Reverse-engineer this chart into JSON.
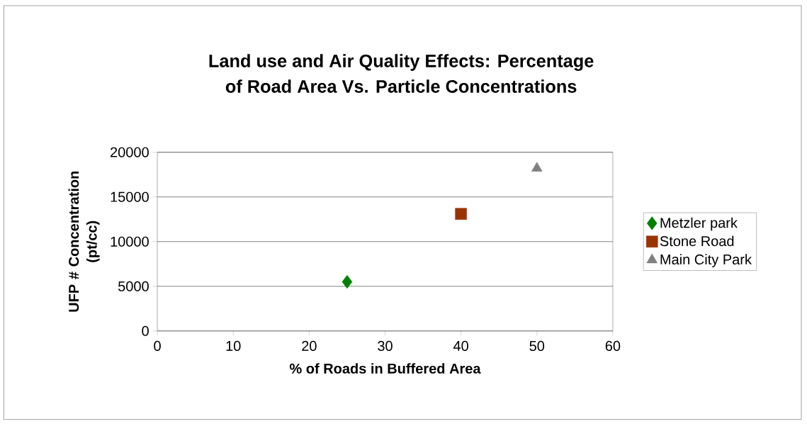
{
  "chart_data": {
    "type": "scatter",
    "title": "Land use and Air Quality Effects: Percentage of Road Area Vs. Particle Concentrations",
    "xlabel": "% of Roads in Buffered Area",
    "ylabel": "UFP # Concentration (pt/cc)",
    "series": [
      {
        "name": "Metzler park",
        "color": "#008000",
        "marker": "diamond",
        "x": [
          25
        ],
        "values": [
          5500
        ]
      },
      {
        "name": "Stone Road",
        "color": "#993300",
        "marker": "square",
        "x": [
          40
        ],
        "values": [
          13100
        ]
      },
      {
        "name": "Main City Park",
        "color": "#808080",
        "marker": "triangle",
        "x": [
          50
        ],
        "values": [
          18200
        ]
      }
    ],
    "xlim": [
      0,
      60
    ],
    "xticks": [
      0,
      10,
      20,
      30,
      40,
      50,
      60
    ],
    "ylim": [
      0,
      20000
    ],
    "yticks": [
      0,
      5000,
      10000,
      15000,
      20000
    ],
    "grid": "y",
    "legend": "right"
  }
}
